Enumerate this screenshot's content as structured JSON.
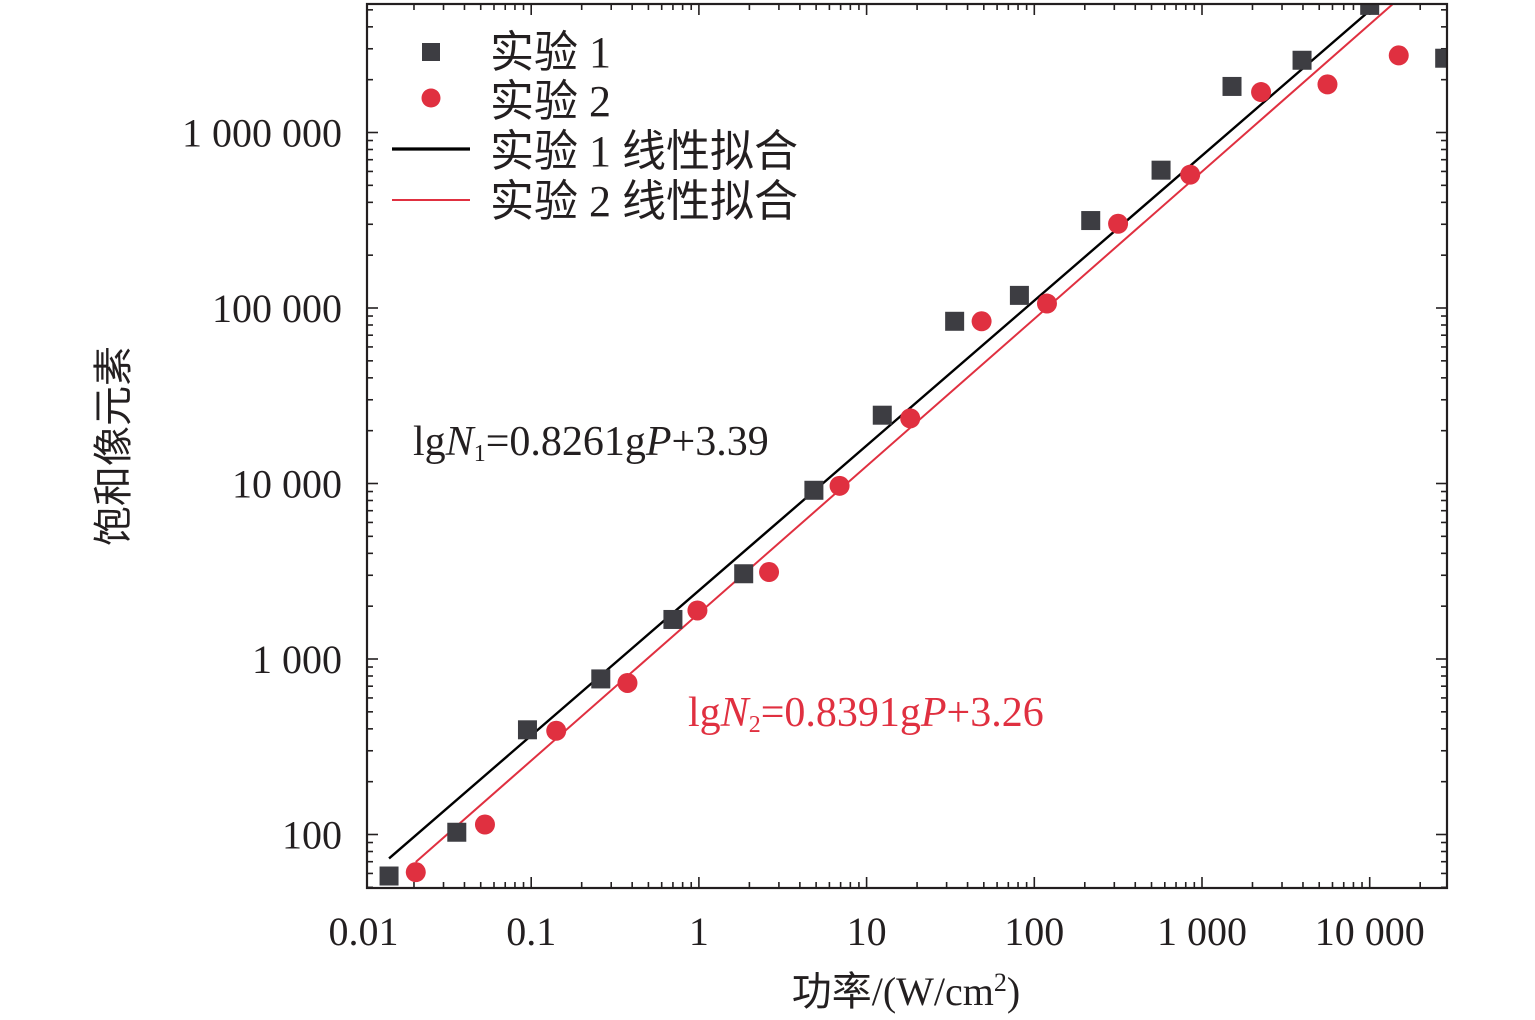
{
  "chart_data": {
    "type": "scatter",
    "xscale": "log",
    "yscale": "log",
    "xlim": [
      0.01,
      30000
    ],
    "ylim": [
      50,
      6000000
    ],
    "xlabel_main": "功率/(W/cm",
    "xlabel_sup": "2",
    "xlabel_close": ")",
    "ylabel": "饱和像元素",
    "x_ticks": [
      {
        "value": 0.01,
        "label": "0.01"
      },
      {
        "value": 0.1,
        "label": "0.1"
      },
      {
        "value": 1,
        "label": "1"
      },
      {
        "value": 10,
        "label": "10"
      },
      {
        "value": 100,
        "label": "100"
      },
      {
        "value": 1000,
        "label": "1 000"
      },
      {
        "value": 10000,
        "label": "10 000"
      }
    ],
    "y_ticks": [
      {
        "value": 100,
        "label": "100"
      },
      {
        "value": 1000,
        "label": "1 000"
      },
      {
        "value": 10000,
        "label": "10 000"
      },
      {
        "value": 100000,
        "label": "100 000"
      },
      {
        "value": 1000000,
        "label": "1 000 000"
      }
    ],
    "legend_position": "top-left",
    "legend": [
      {
        "label": "实验 1",
        "kind": "square-marker"
      },
      {
        "label": "实验 2",
        "kind": "circle-marker"
      },
      {
        "label": "实验 1 线性拟合",
        "kind": "black-line"
      },
      {
        "label": "实验 2 线性拟合",
        "kind": "red-line"
      }
    ],
    "series": [
      {
        "marker": "square",
        "color": "#3d3d42",
        "points": [
          [
            0.0142,
            58
          ],
          [
            0.036,
            103
          ],
          [
            0.095,
            395
          ],
          [
            0.26,
            770
          ],
          [
            0.7,
            1680
          ],
          [
            1.85,
            3060
          ],
          [
            4.85,
            9150
          ],
          [
            12.4,
            24500
          ],
          [
            33.5,
            84000
          ],
          [
            81.5,
            118000
          ],
          [
            217,
            315000
          ],
          [
            570,
            610000
          ],
          [
            1510,
            1830000
          ],
          [
            3950,
            2580000
          ],
          [
            10000,
            5300000
          ],
          [
            28000,
            2650000
          ]
        ]
      },
      {
        "marker": "circle",
        "color": "#e03040",
        "points": [
          [
            0.0205,
            61
          ],
          [
            0.053,
            114
          ],
          [
            0.141,
            390
          ],
          [
            0.375,
            730
          ],
          [
            0.98,
            1890
          ],
          [
            2.62,
            3130
          ],
          [
            6.9,
            9700
          ],
          [
            18.2,
            23500
          ],
          [
            48.5,
            84000
          ],
          [
            119,
            106000
          ],
          [
            316,
            302000
          ],
          [
            850,
            575000
          ],
          [
            2250,
            1700000
          ],
          [
            5600,
            1880000
          ],
          [
            14900,
            2750000
          ]
        ]
      }
    ],
    "fits": [
      {
        "color": "#000000",
        "slope": 0.8261,
        "intercept": 3.39,
        "x_range": [
          0.0142,
          15000
        ],
        "equation": {
          "pre": "lg",
          "var": "N",
          "sub": "1",
          "mid": "=0.8261g",
          "var2": "P",
          "post": "+3.39"
        }
      },
      {
        "color": "#e03040",
        "slope": 0.8391,
        "intercept": 3.26,
        "x_range": [
          0.0205,
          15000
        ],
        "equation": {
          "pre": "lg",
          "var": "N",
          "sub": "2",
          "mid": "=0.8391g",
          "var2": "P",
          "post": "+3.26"
        }
      }
    ]
  }
}
